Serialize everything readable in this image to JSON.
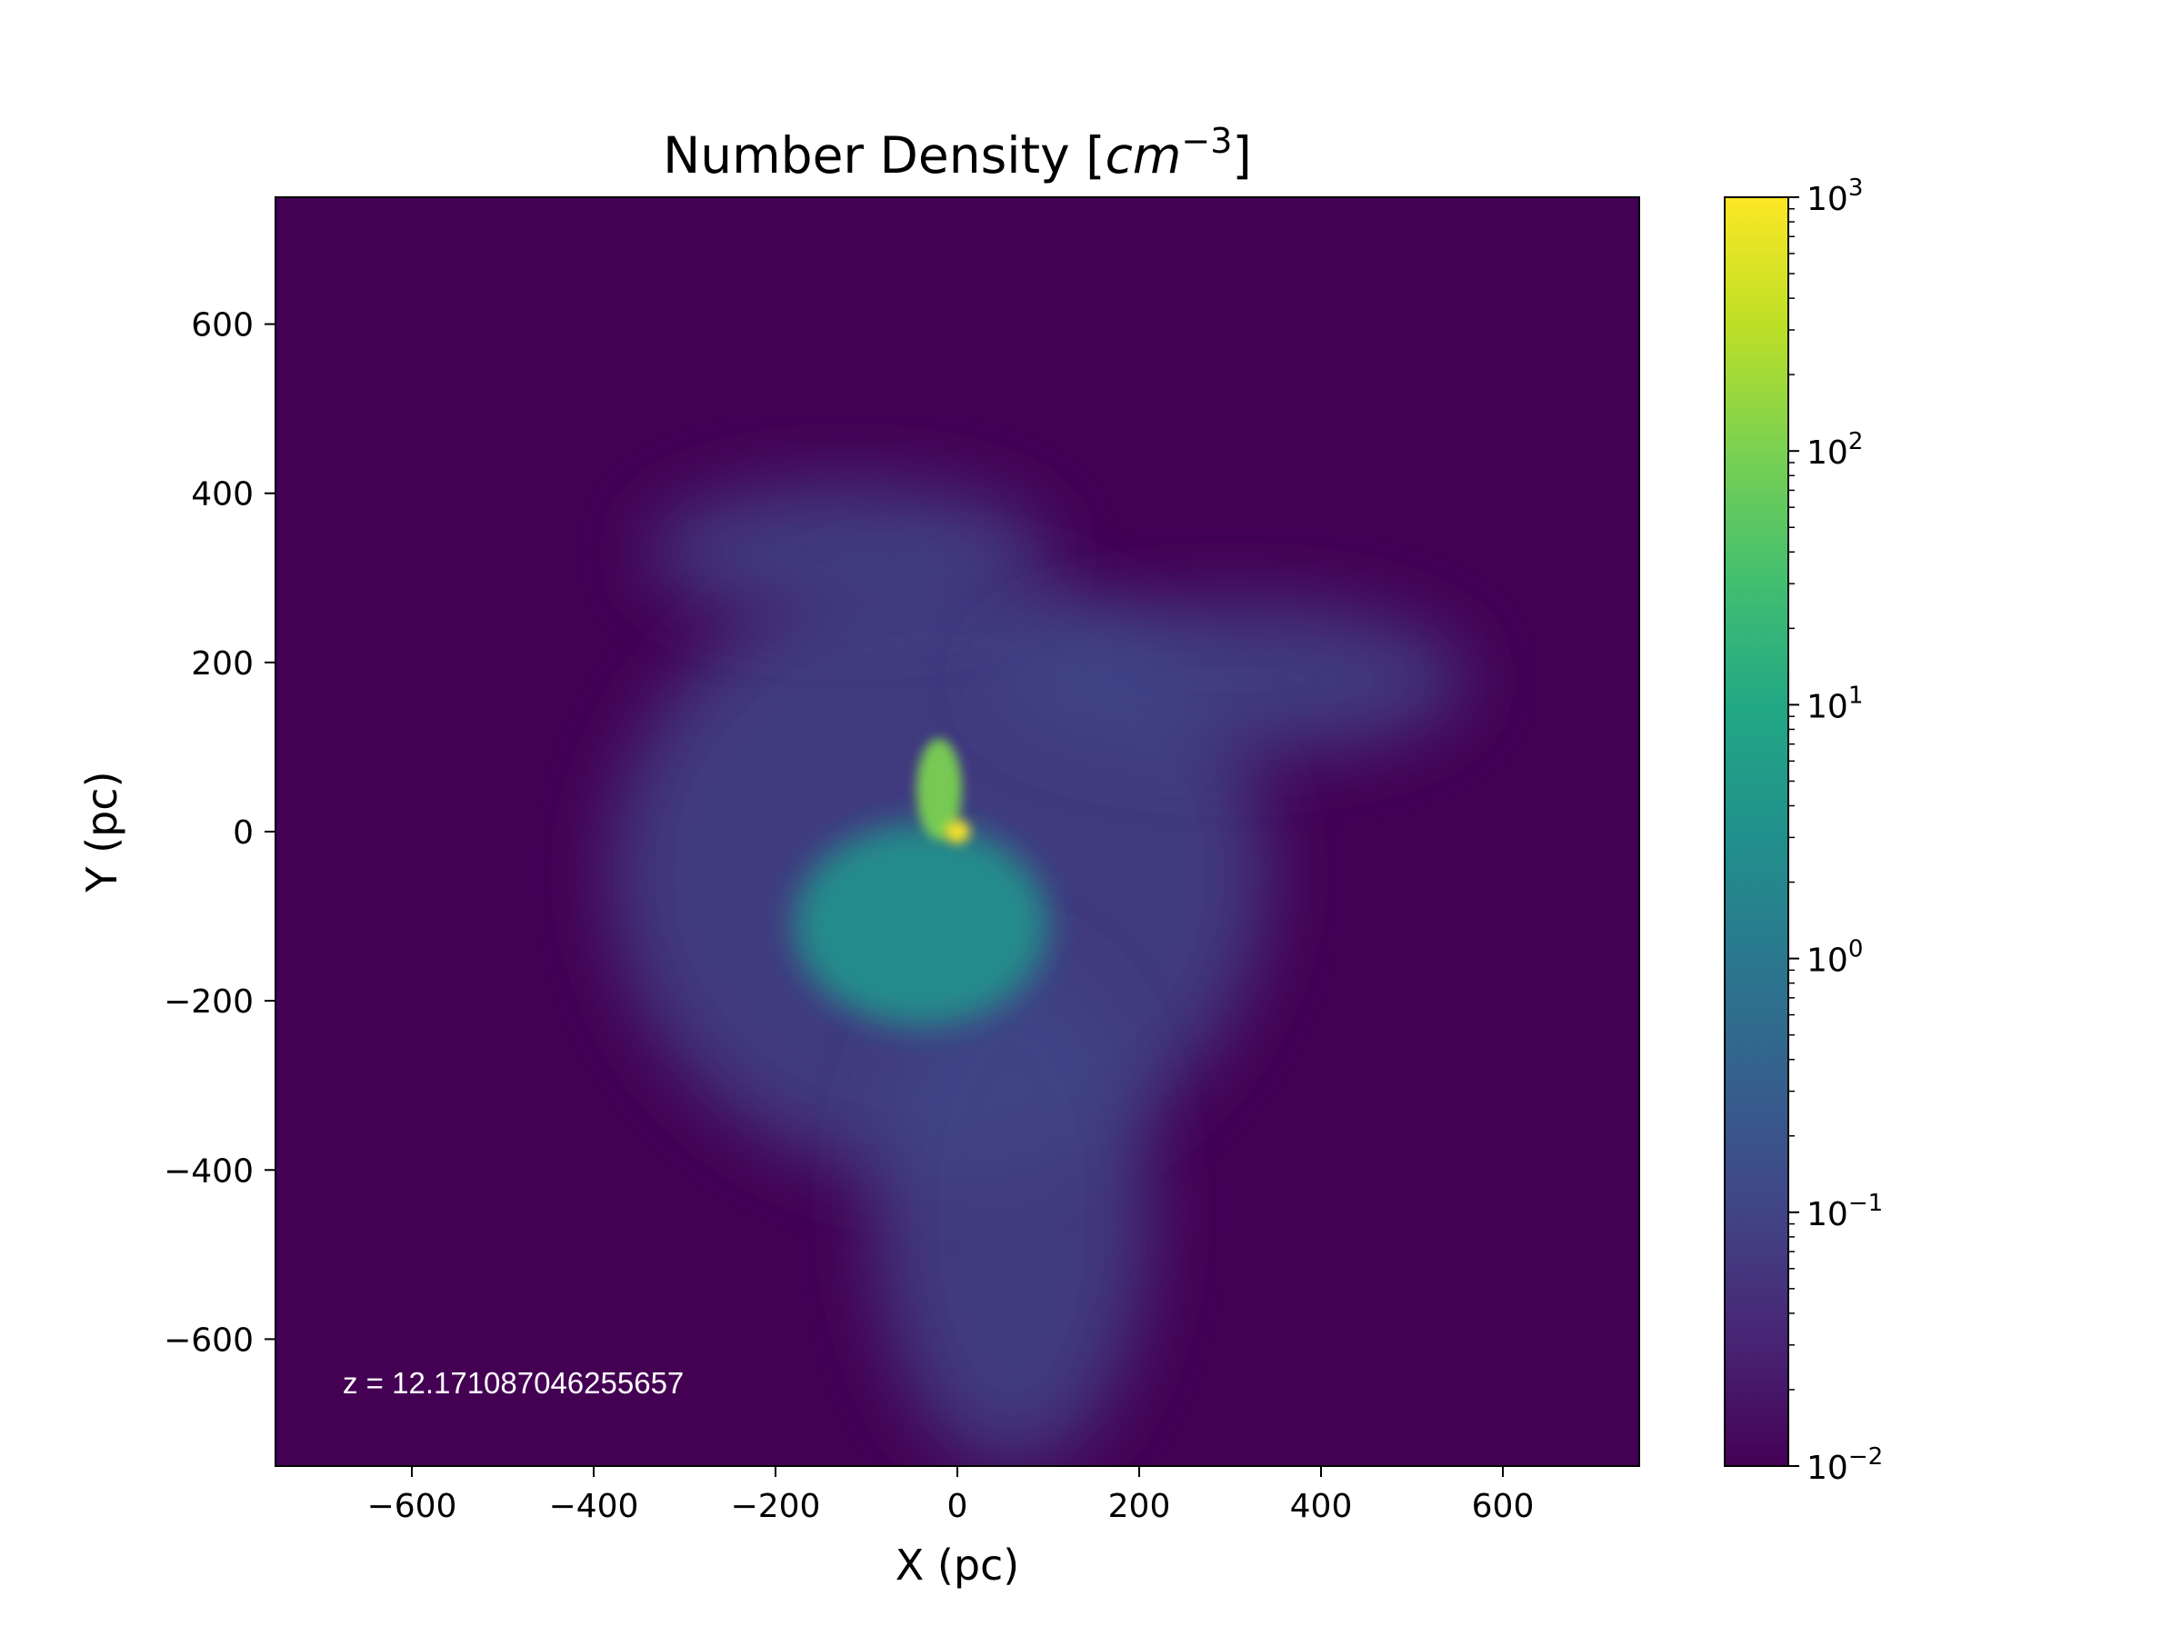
{
  "chart_data": {
    "type": "heatmap",
    "title_main": "Number Density [",
    "title_unit_base": "cm",
    "title_unit_exp": "−3",
    "title_close": "]",
    "xlabel": "X (pc)",
    "ylabel": "Y (pc)",
    "xlim": [
      -750,
      750
    ],
    "ylim": [
      -750,
      750
    ],
    "xticks": [
      -600,
      -400,
      -200,
      0,
      200,
      400,
      600
    ],
    "yticks": [
      -600,
      -400,
      -200,
      0,
      200,
      400,
      600
    ],
    "xtick_labels": [
      "−600",
      "−400",
      "−200",
      "0",
      "200",
      "400",
      "600"
    ],
    "ytick_labels": [
      "−600",
      "−400",
      "−200",
      "0",
      "200",
      "400",
      "600"
    ],
    "colormap": "viridis",
    "colorbar": {
      "scale": "log",
      "range": [
        0.01,
        1000
      ],
      "ticks": [
        {
          "value": 0.01,
          "base": "10",
          "exp": "−2"
        },
        {
          "value": 0.1,
          "base": "10",
          "exp": "−1"
        },
        {
          "value": 1,
          "base": "10",
          "exp": "0"
        },
        {
          "value": 10,
          "base": "10",
          "exp": "1"
        },
        {
          "value": 100,
          "base": "10",
          "exp": "2"
        },
        {
          "value": 1000,
          "base": "10",
          "exp": "3"
        }
      ]
    },
    "annotation": "z = 12.171087046255657",
    "features": [
      {
        "name": "background",
        "x": 0,
        "y": 0,
        "density": 0.012
      },
      {
        "name": "diffuse-halo",
        "x": -20,
        "y": -50,
        "sx": 360,
        "sy": 360,
        "density": 0.06
      },
      {
        "name": "upper-filament",
        "x": -120,
        "y": 330,
        "sx": 220,
        "sy": 80,
        "density": 0.08
      },
      {
        "name": "right-arm",
        "x": 300,
        "y": 180,
        "sx": 260,
        "sy": 90,
        "density": 0.07
      },
      {
        "name": "lower-stream",
        "x": 60,
        "y": -450,
        "sx": 150,
        "sy": 300,
        "density": 0.09
      },
      {
        "name": "shell",
        "x": -40,
        "y": -110,
        "sx": 140,
        "sy": 120,
        "density": 3
      },
      {
        "name": "core-elongated",
        "x": -20,
        "y": 50,
        "sx": 25,
        "sy": 60,
        "density": 150
      },
      {
        "name": "peak",
        "x": 0,
        "y": 0,
        "sx": 14,
        "sy": 14,
        "density": 1000
      }
    ]
  }
}
